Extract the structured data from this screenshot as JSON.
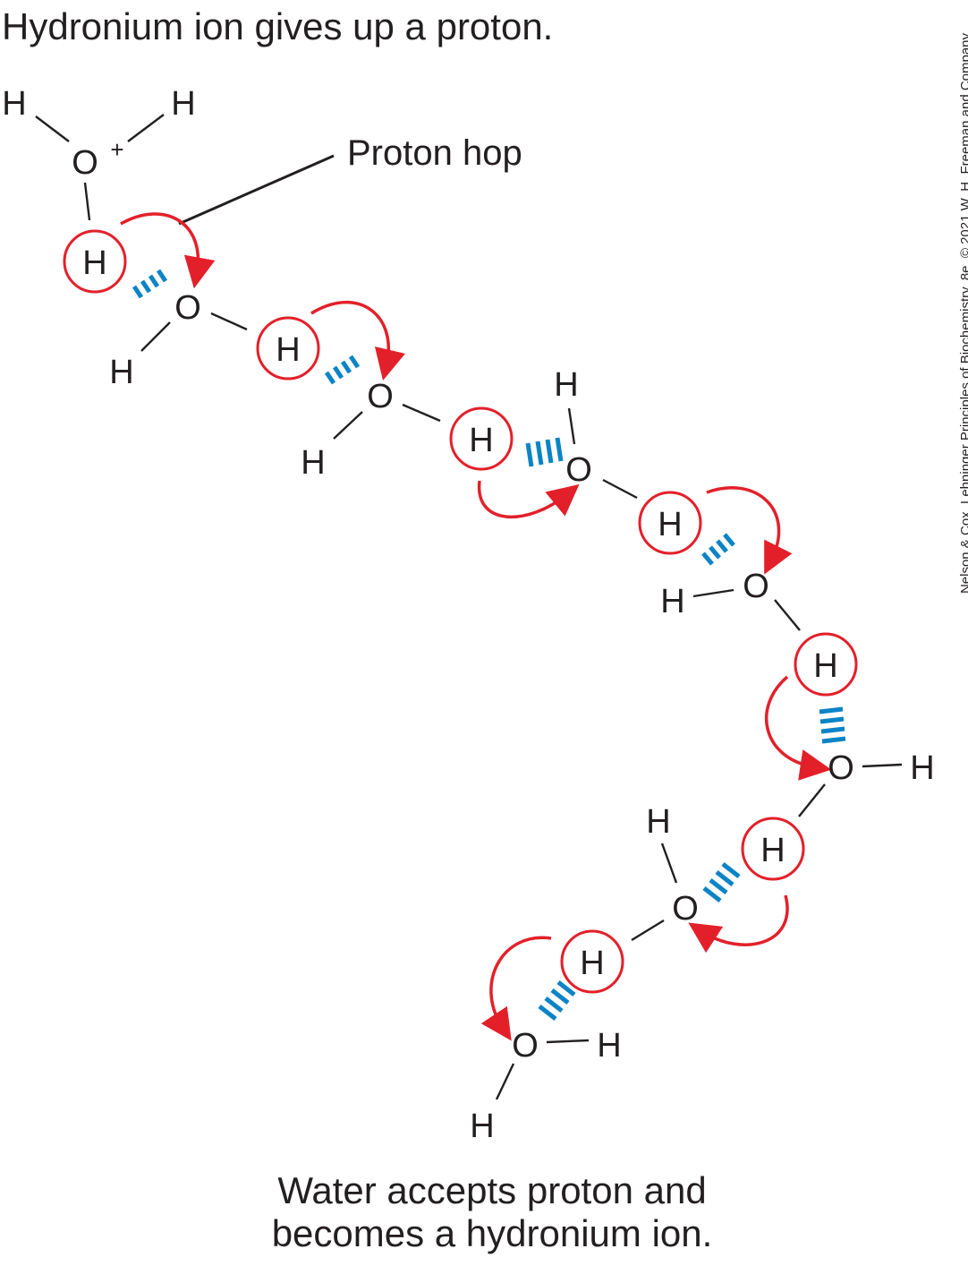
{
  "top_caption": "Hydronium ion gives up a proton.",
  "bottom_caption_line1": "Water accepts proton and",
  "bottom_caption_line2": "becomes a hydronium ion.",
  "proton_hop_label": "Proton hop",
  "credit": "Nelson & Cox, Lehninger Principles of Biochemistry, 8e, © 2021 W. H. Freeman and Company",
  "atoms": {
    "hydrogen": "H",
    "oxygen": "O",
    "plus": "+"
  },
  "colors": {
    "text": "#231f20",
    "proton_ring": "#e3202a",
    "arrow": "#e3202a",
    "hydrogen_bond": "#0b84c6"
  }
}
